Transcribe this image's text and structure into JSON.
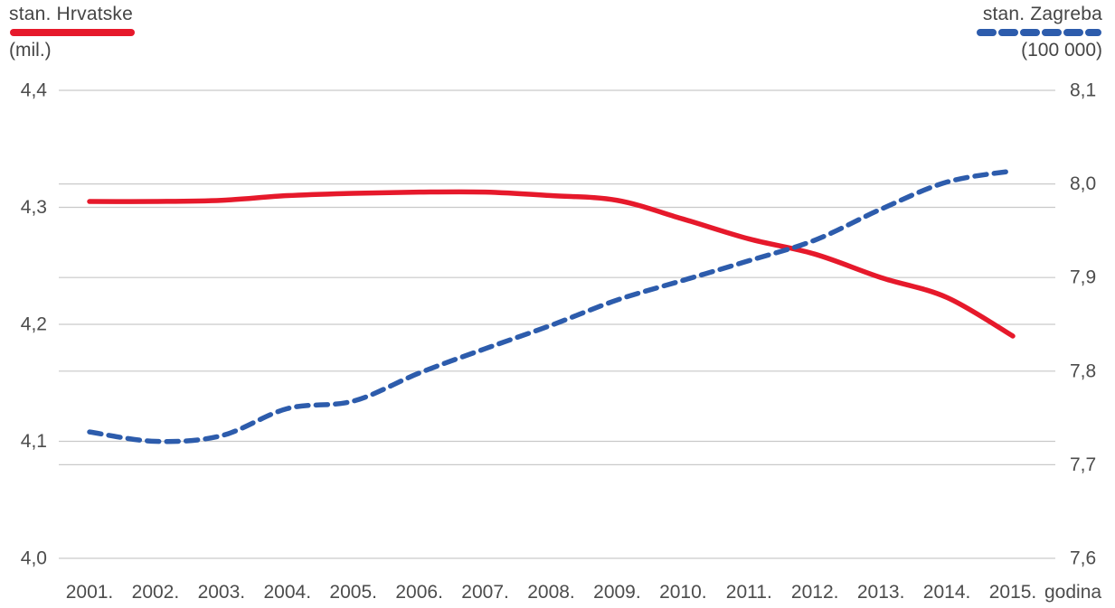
{
  "legend": {
    "left": {
      "name": "stan. Hrvatske",
      "unit": "(mil.)"
    },
    "right": {
      "name": "stan. Zagreba",
      "unit": "(100 000)"
    }
  },
  "colors": {
    "hrvatska_line": "#e6192b",
    "zagreb_line": "#2d5cac",
    "gridline": "#c9c9c9",
    "label_text": "#4c4c4c"
  },
  "chart_data": {
    "type": "line",
    "x": [
      2001,
      2002,
      2003,
      2004,
      2005,
      2006,
      2007,
      2008,
      2009,
      2010,
      2011,
      2012,
      2013,
      2014,
      2015
    ],
    "x_tick_labels": [
      "2001.",
      "2002.",
      "2003.",
      "2004.",
      "2005.",
      "2006.",
      "2007.",
      "2008.",
      "2009.",
      "2010.",
      "2011.",
      "2012.",
      "2013.",
      "2014.",
      "2015."
    ],
    "x_axis_suffix_label": "godina",
    "series": [
      {
        "name": "stan. Hrvatske",
        "axis": "left",
        "unit": "mil.",
        "style": "solid",
        "color": "#e6192b",
        "values": [
          4.305,
          4.305,
          4.306,
          4.31,
          4.312,
          4.313,
          4.313,
          4.31,
          4.306,
          4.29,
          4.273,
          4.26,
          4.24,
          4.223,
          4.19
        ]
      },
      {
        "name": "stan. Zagreba",
        "axis": "right",
        "unit": "100 000",
        "style": "dashed",
        "color": "#2d5cac",
        "values": [
          7.735,
          7.725,
          7.731,
          7.76,
          7.768,
          7.798,
          7.824,
          7.849,
          7.876,
          7.897,
          7.918,
          7.94,
          7.973,
          8.002,
          8.014
        ]
      }
    ],
    "left_axis": {
      "min": 4.0,
      "max": 4.4,
      "ticks": [
        {
          "value": 4.4,
          "label": "4,4"
        },
        {
          "value": 4.3,
          "label": "4,3"
        },
        {
          "value": 4.2,
          "label": "4,2"
        },
        {
          "value": 4.1,
          "label": "4,1"
        },
        {
          "value": 4.0,
          "label": "4,0"
        }
      ]
    },
    "right_axis": {
      "min": 7.6,
      "max": 8.1,
      "ticks": [
        {
          "value": 8.1,
          "label": "8,1"
        },
        {
          "value": 8.0,
          "label": "8,0"
        },
        {
          "value": 7.9,
          "label": "7,9"
        },
        {
          "value": 7.8,
          "label": "7,8"
        },
        {
          "value": 7.7,
          "label": "7,7"
        },
        {
          "value": 7.6,
          "label": "7,6"
        }
      ]
    },
    "grid": true,
    "legend_position": "top-corners"
  }
}
